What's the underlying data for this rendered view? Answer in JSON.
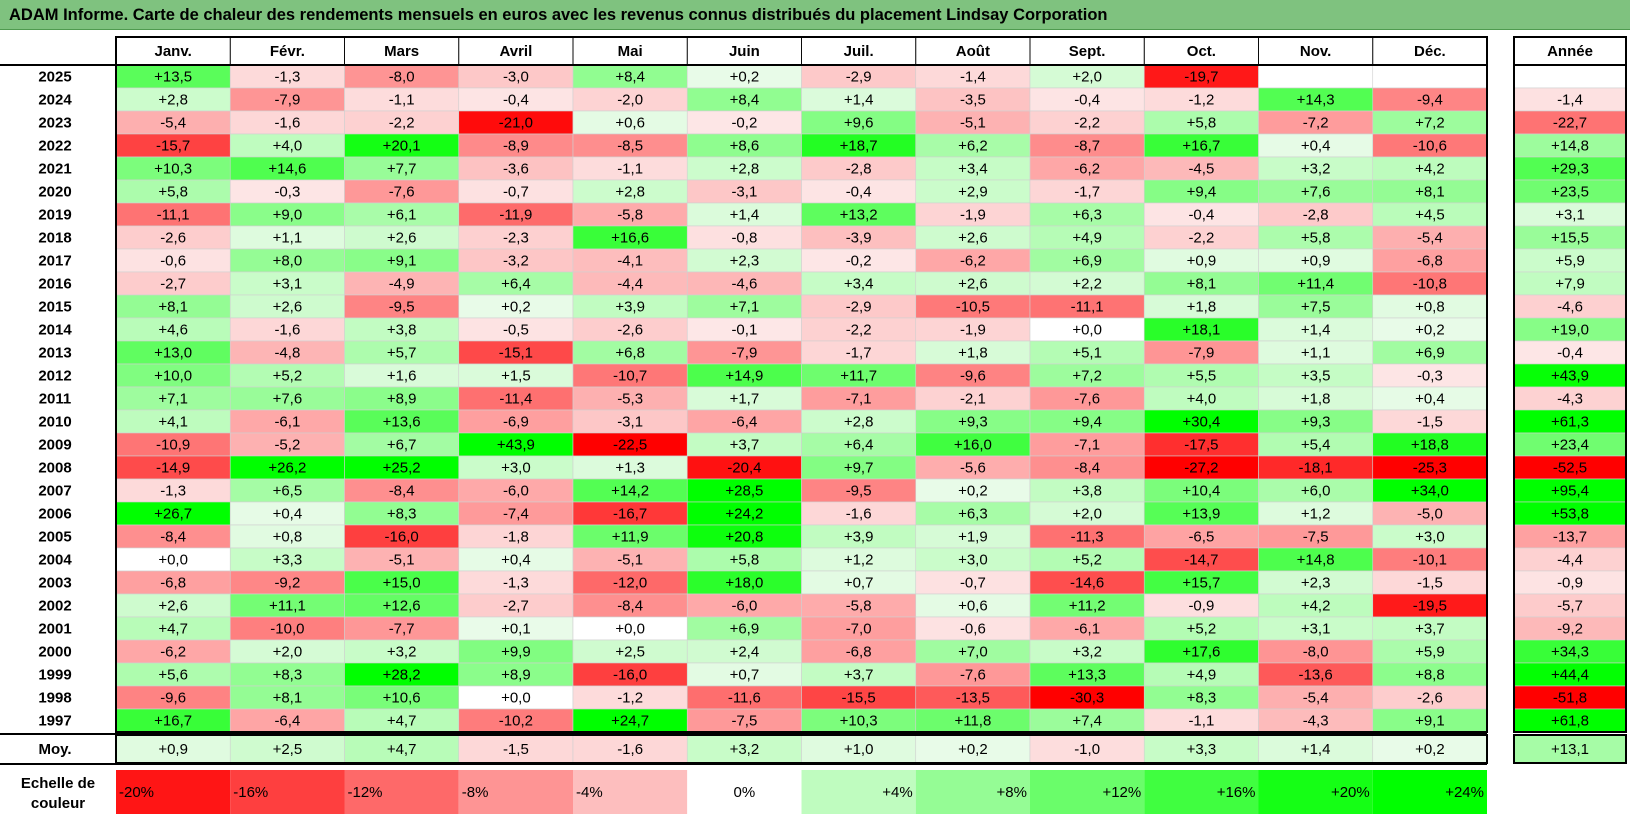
{
  "title": "ADAM Informe. Carte de chaleur des rendements mensuels en euros avec les revenus connus distribués du placement Lindsay Corporation",
  "year_header": "Année",
  "average_label": "Moy.",
  "scale_label": [
    "Echelle de",
    "couleur"
  ],
  "colors": {
    "title_bar": "#7fc27f",
    "positive_max": "#00ff00",
    "negative_max": "#ff0000",
    "neutral": "#ffffff"
  },
  "chart_data": {
    "type": "heatmap",
    "columns": [
      "Janv.",
      "Févr.",
      "Mars",
      "Avril",
      "Mai",
      "Juin",
      "Juil.",
      "Août",
      "Sept.",
      "Oct.",
      "Nov.",
      "Déc."
    ],
    "rows": [
      {
        "year": "2025",
        "months": [
          "+13,5",
          "-1,3",
          "-8,0",
          "-3,0",
          "+8,4",
          "+0,2",
          "-2,9",
          "-1,4",
          "+2,0",
          "-19,7",
          "",
          ""
        ],
        "annual": ""
      },
      {
        "year": "2024",
        "months": [
          "+2,8",
          "-7,9",
          "-1,1",
          "-0,4",
          "-2,0",
          "+8,4",
          "+1,4",
          "-3,5",
          "-0,4",
          "-1,2",
          "+14,3",
          "-9,4"
        ],
        "annual": "-1,4"
      },
      {
        "year": "2023",
        "months": [
          "-5,4",
          "-1,6",
          "-2,2",
          "-21,0",
          "+0,6",
          "-0,2",
          "+9,6",
          "-5,1",
          "-2,2",
          "+5,8",
          "-7,2",
          "+7,2"
        ],
        "annual": "-22,7"
      },
      {
        "year": "2022",
        "months": [
          "-15,7",
          "+4,0",
          "+20,1",
          "-8,9",
          "-8,5",
          "+8,6",
          "+18,7",
          "+6,2",
          "-8,7",
          "+16,7",
          "+0,4",
          "-10,6"
        ],
        "annual": "+14,8"
      },
      {
        "year": "2021",
        "months": [
          "+10,3",
          "+14,6",
          "+7,7",
          "-3,6",
          "-1,1",
          "+2,8",
          "-2,8",
          "+3,4",
          "-6,2",
          "-4,5",
          "+3,2",
          "+4,2"
        ],
        "annual": "+29,3"
      },
      {
        "year": "2020",
        "months": [
          "+5,8",
          "-0,3",
          "-7,6",
          "-0,7",
          "+2,8",
          "-3,1",
          "-0,4",
          "+2,9",
          "-1,7",
          "+9,4",
          "+7,6",
          "+8,1"
        ],
        "annual": "+23,5"
      },
      {
        "year": "2019",
        "months": [
          "-11,1",
          "+9,0",
          "+6,1",
          "-11,9",
          "-5,8",
          "+1,4",
          "+13,2",
          "-1,9",
          "+6,3",
          "-0,4",
          "-2,8",
          "+4,5"
        ],
        "annual": "+3,1"
      },
      {
        "year": "2018",
        "months": [
          "-2,6",
          "+1,1",
          "+2,6",
          "-2,3",
          "+16,6",
          "-0,8",
          "-3,9",
          "+2,6",
          "+4,9",
          "-2,2",
          "+5,8",
          "-5,4"
        ],
        "annual": "+15,5"
      },
      {
        "year": "2017",
        "months": [
          "-0,6",
          "+8,0",
          "+9,1",
          "-3,2",
          "-4,1",
          "+2,3",
          "-0,2",
          "-6,2",
          "+6,9",
          "+0,9",
          "+0,9",
          "-6,8"
        ],
        "annual": "+5,9"
      },
      {
        "year": "2016",
        "months": [
          "-2,7",
          "+3,1",
          "-4,9",
          "+6,4",
          "-4,4",
          "-4,6",
          "+3,4",
          "+2,6",
          "+2,2",
          "+8,1",
          "+11,4",
          "-10,8"
        ],
        "annual": "+7,9"
      },
      {
        "year": "2015",
        "months": [
          "+8,1",
          "+2,6",
          "-9,5",
          "+0,2",
          "+3,9",
          "+7,1",
          "-2,9",
          "-10,5",
          "-11,1",
          "+1,8",
          "+7,5",
          "+0,8"
        ],
        "annual": "-4,6"
      },
      {
        "year": "2014",
        "months": [
          "+4,6",
          "-1,6",
          "+3,8",
          "-0,5",
          "-2,6",
          "-0,1",
          "-2,2",
          "-1,9",
          "+0,0",
          "+18,1",
          "+1,4",
          "+0,2"
        ],
        "annual": "+19,0"
      },
      {
        "year": "2013",
        "months": [
          "+13,0",
          "-4,8",
          "+5,7",
          "-15,1",
          "+6,8",
          "-7,9",
          "-1,7",
          "+1,8",
          "+5,1",
          "-7,9",
          "+1,1",
          "+6,9"
        ],
        "annual": "-0,4"
      },
      {
        "year": "2012",
        "months": [
          "+10,0",
          "+5,2",
          "+1,6",
          "+1,5",
          "-10,7",
          "+14,9",
          "+11,7",
          "-9,6",
          "+7,2",
          "+5,5",
          "+3,5",
          "-0,3"
        ],
        "annual": "+43,9"
      },
      {
        "year": "2011",
        "months": [
          "+7,1",
          "+7,6",
          "+8,9",
          "-11,4",
          "-5,3",
          "+1,7",
          "-7,1",
          "-2,1",
          "-7,6",
          "+4,0",
          "+1,8",
          "+0,4"
        ],
        "annual": "-4,3"
      },
      {
        "year": "2010",
        "months": [
          "+4,1",
          "-6,1",
          "+13,6",
          "-6,9",
          "-3,1",
          "-6,4",
          "+2,8",
          "+9,3",
          "+9,4",
          "+30,4",
          "+9,3",
          "-1,5"
        ],
        "annual": "+61,3"
      },
      {
        "year": "2009",
        "months": [
          "-10,9",
          "-5,2",
          "+6,7",
          "+43,9",
          "-22,5",
          "+3,7",
          "+6,4",
          "+16,0",
          "-7,1",
          "-17,5",
          "+5,4",
          "+18,8"
        ],
        "annual": "+23,4"
      },
      {
        "year": "2008",
        "months": [
          "-14,9",
          "+26,2",
          "+25,2",
          "+3,0",
          "+1,3",
          "-20,4",
          "+9,7",
          "-5,6",
          "-8,4",
          "-27,2",
          "-18,1",
          "-25,3"
        ],
        "annual": "-52,5"
      },
      {
        "year": "2007",
        "months": [
          "-1,3",
          "+6,5",
          "-8,4",
          "-6,0",
          "+14,2",
          "+28,5",
          "-9,5",
          "+0,2",
          "+3,8",
          "+10,4",
          "+6,0",
          "+34,0"
        ],
        "annual": "+95,4"
      },
      {
        "year": "2006",
        "months": [
          "+26,7",
          "+0,4",
          "+8,3",
          "-7,4",
          "-16,7",
          "+24,2",
          "-1,6",
          "+6,3",
          "+2,0",
          "+13,9",
          "+1,2",
          "-5,0"
        ],
        "annual": "+53,8"
      },
      {
        "year": "2005",
        "months": [
          "-8,4",
          "+0,8",
          "-16,0",
          "-1,8",
          "+11,9",
          "+20,8",
          "+3,9",
          "+1,9",
          "-11,3",
          "-6,5",
          "-7,5",
          "+3,0"
        ],
        "annual": "-13,7"
      },
      {
        "year": "2004",
        "months": [
          "+0,0",
          "+3,3",
          "-5,1",
          "+0,4",
          "-5,1",
          "+5,8",
          "+1,2",
          "+3,0",
          "+5,2",
          "-14,7",
          "+14,8",
          "-10,1"
        ],
        "annual": "-4,4"
      },
      {
        "year": "2003",
        "months": [
          "-6,8",
          "-9,2",
          "+15,0",
          "-1,3",
          "-12,0",
          "+18,0",
          "+0,7",
          "-0,7",
          "-14,6",
          "+15,7",
          "+2,3",
          "-1,5"
        ],
        "annual": "-0,9"
      },
      {
        "year": "2002",
        "months": [
          "+2,6",
          "+11,1",
          "+12,6",
          "-2,7",
          "-8,4",
          "-6,0",
          "-5,8",
          "+0,6",
          "+11,2",
          "-0,9",
          "+4,2",
          "-19,5"
        ],
        "annual": "-5,7"
      },
      {
        "year": "2001",
        "months": [
          "+4,7",
          "-10,0",
          "-7,7",
          "+0,1",
          "+0,0",
          "+6,9",
          "-7,0",
          "-0,6",
          "-6,1",
          "+5,2",
          "+3,1",
          "+3,7"
        ],
        "annual": "-9,2"
      },
      {
        "year": "2000",
        "months": [
          "-6,2",
          "+2,0",
          "+3,2",
          "+9,9",
          "+2,5",
          "+2,4",
          "-6,8",
          "+7,0",
          "+3,2",
          "+17,6",
          "-8,0",
          "+5,9"
        ],
        "annual": "+34,3"
      },
      {
        "year": "1999",
        "months": [
          "+5,6",
          "+8,3",
          "+28,2",
          "+8,9",
          "-16,0",
          "+0,7",
          "+3,7",
          "-7,6",
          "+13,3",
          "+4,9",
          "-13,6",
          "+8,8"
        ],
        "annual": "+44,4"
      },
      {
        "year": "1998",
        "months": [
          "-9,6",
          "+8,1",
          "+10,6",
          "+0,0",
          "-1,2",
          "-11,6",
          "-15,5",
          "-13,5",
          "-30,3",
          "+8,3",
          "-5,4",
          "-2,6"
        ],
        "annual": "-51,8"
      },
      {
        "year": "1997",
        "months": [
          "+16,7",
          "-6,4",
          "+4,7",
          "-10,2",
          "+24,7",
          "-7,5",
          "+10,3",
          "+11,8",
          "+7,4",
          "-1,1",
          "-4,3",
          "+9,1"
        ],
        "annual": "+61,8"
      }
    ],
    "average": {
      "months": [
        "+0,9",
        "+2,5",
        "+4,7",
        "-1,5",
        "-1,6",
        "+3,2",
        "+1,0",
        "+0,2",
        "-1,0",
        "+3,3",
        "+1,4",
        "+0,2"
      ],
      "annual": "+13,1"
    },
    "color_scale": [
      "-20%",
      "-16%",
      "-12%",
      "-8%",
      "-4%",
      "0%",
      "+4%",
      "+8%",
      "+12%",
      "+16%",
      "+20%",
      "+24%"
    ]
  }
}
